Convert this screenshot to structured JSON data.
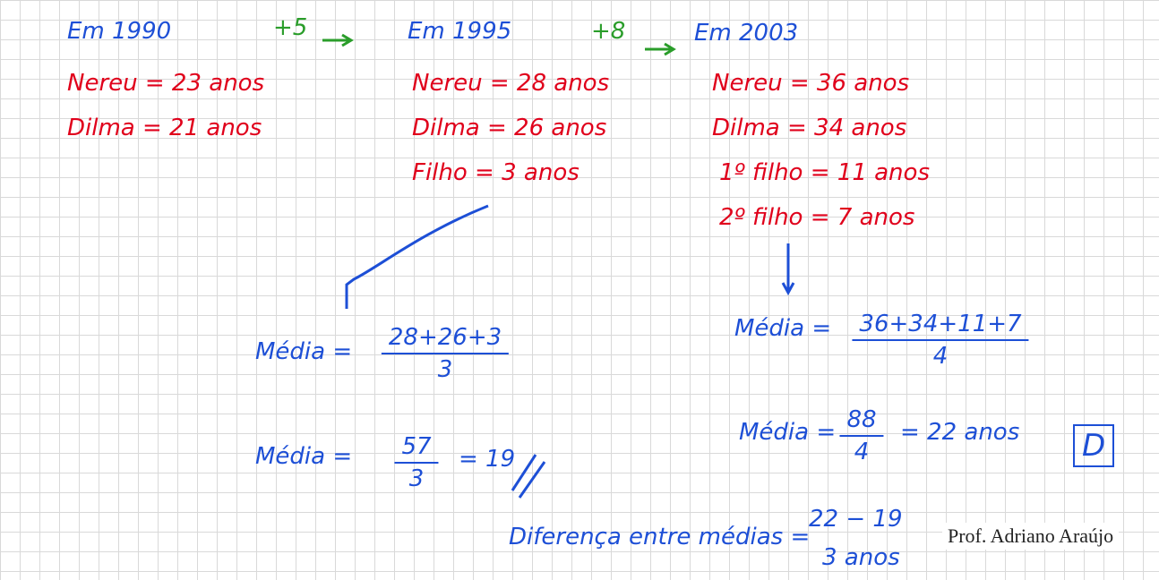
{
  "years": [
    "Em 1990",
    "Em 1995",
    "Em 2003"
  ],
  "steps": [
    "+5",
    "+8"
  ],
  "ages": [
    [
      "Nereu = 23 anos",
      "Dilma = 21 anos"
    ],
    [
      "Nereu = 28 anos",
      "Dilma = 26 anos",
      "Filho = 3 anos"
    ],
    [
      "Nereu = 36 anos",
      "Dilma = 34 anos",
      "1º filho = 11 anos",
      "2º filho = 7 anos"
    ]
  ],
  "averages": [
    {
      "label": "Média =",
      "numerator": "28+26+3",
      "denominator": "3"
    },
    {
      "label": "Média =",
      "numerator": "57",
      "denominator": "3",
      "result": "= 19"
    },
    {
      "label": "Média =",
      "numerator": "36+34+11+7",
      "denominator": "4"
    },
    {
      "label": "Média =",
      "numerator": "88",
      "denominator": "4",
      "result": "= 22 anos"
    }
  ],
  "answer": "D",
  "difference": {
    "label": "Diferença entre médias =",
    "expression": "22 − 19",
    "result": "3 anos"
  },
  "signature": "Prof. Adriano Araújo"
}
